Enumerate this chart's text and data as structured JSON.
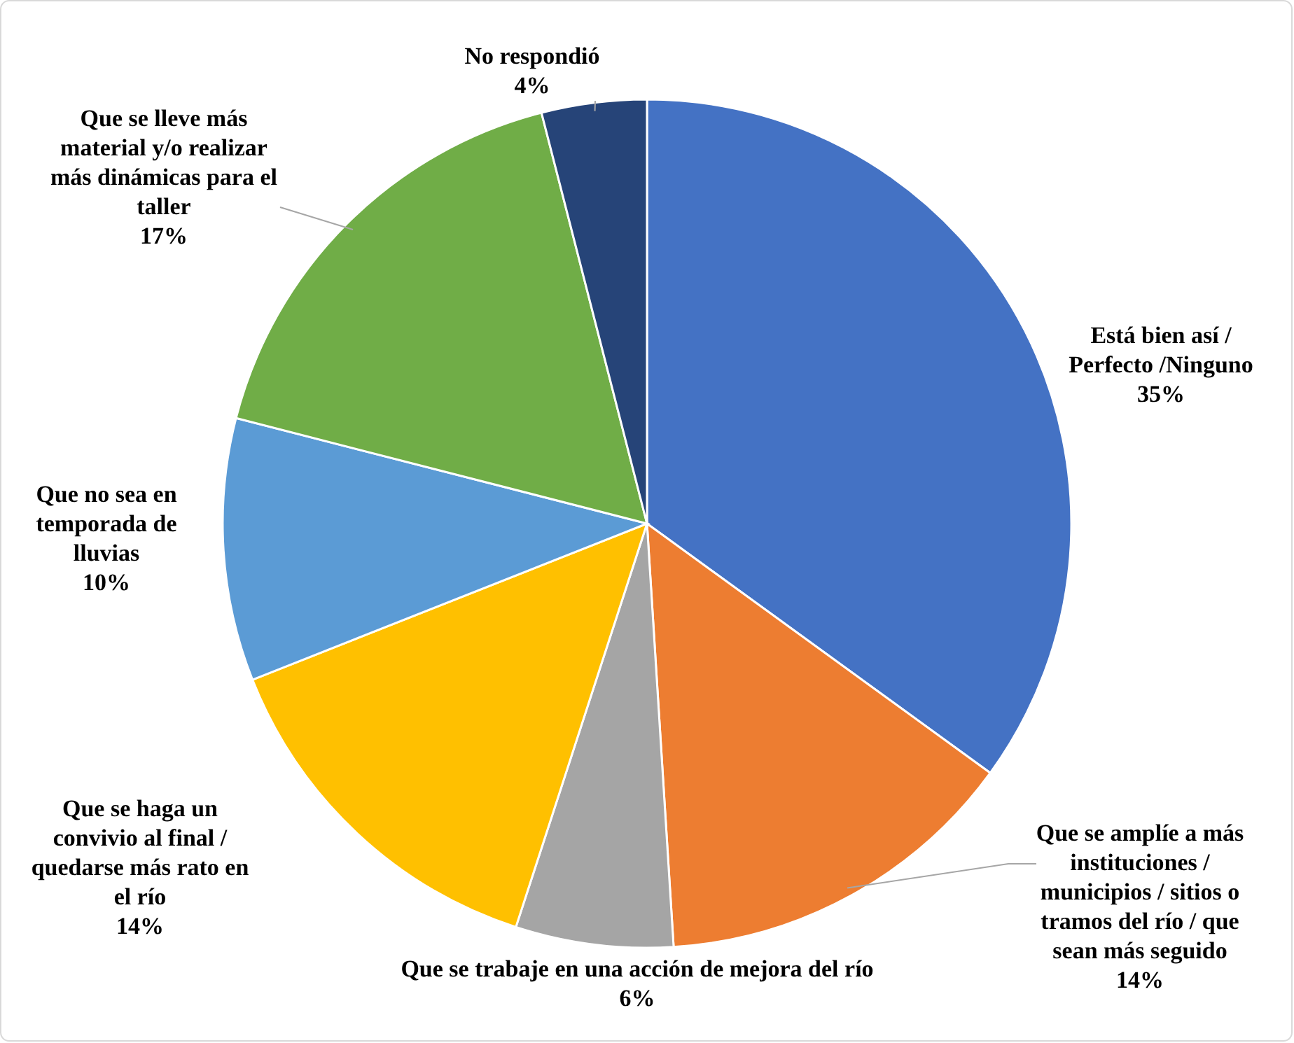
{
  "chart_data": {
    "type": "pie",
    "categories": [
      "Está bien así / Perfecto /Ninguno",
      "Que se amplíe a más instituciones / municipios / sitios o tramos del río / que sean más seguido",
      "Que se trabaje en una acción de mejora del río",
      "Que se haga un convivio al final / quedarse más rato en el río",
      "Que no sea en temporada de lluvias",
      "Que se lleve más material y/o realizar más dinámicas para el taller",
      "No respondió"
    ],
    "values": [
      35,
      14,
      6,
      14,
      10,
      17,
      4
    ],
    "value_labels": [
      "35%",
      "14%",
      "6%",
      "14%",
      "10%",
      "17%",
      "4%"
    ],
    "colors": [
      "#4472c4",
      "#ed7d31",
      "#a5a5a5",
      "#ffc000",
      "#5b9bd5",
      "#70ad47",
      "#264478"
    ]
  }
}
